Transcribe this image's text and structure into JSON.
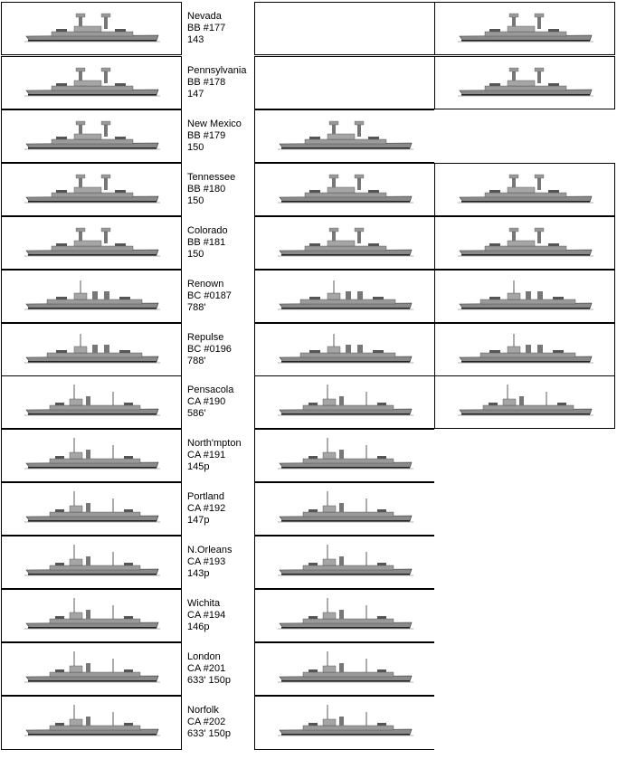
{
  "ships": [
    {
      "name": "Nevada",
      "hull": "BB #177",
      "note": "143",
      "views": [
        true,
        false,
        true
      ]
    },
    {
      "name": "Pennsylvania",
      "hull": "BB #178",
      "note": "147",
      "views": [
        true,
        false,
        true
      ]
    },
    {
      "name": "New Mexico",
      "hull": "BB #179",
      "note": "150",
      "views": [
        true,
        true,
        false
      ]
    },
    {
      "name": "Tennessee",
      "hull": "BB #180",
      "note": "150",
      "views": [
        true,
        true,
        true
      ]
    },
    {
      "name": "Colorado",
      "hull": "BB #181",
      "note": "150",
      "views": [
        true,
        true,
        true
      ]
    },
    {
      "name": "Renown",
      "hull": "BC #0187",
      "note": "788'",
      "views": [
        true,
        true,
        true
      ]
    },
    {
      "name": "Repulse",
      "hull": "BC #0196",
      "note": "788'",
      "views": [
        true,
        true,
        true
      ]
    },
    {
      "name": "Pensacola",
      "hull": "CA #190",
      "note": "586'",
      "views": [
        true,
        true,
        true
      ]
    },
    {
      "name": "North'mpton",
      "hull": "CA #191",
      "note": "145p",
      "views": [
        true,
        true,
        false
      ]
    },
    {
      "name": "Portland",
      "hull": "CA #192",
      "note": "147p",
      "views": [
        true,
        true,
        false
      ]
    },
    {
      "name": "N.Orleans",
      "hull": "CA #193",
      "note": "143p",
      "views": [
        true,
        true,
        false
      ]
    },
    {
      "name": "Wichita",
      "hull": "CA #194",
      "note": "146p",
      "views": [
        true,
        true,
        false
      ]
    },
    {
      "name": "London",
      "hull": "CA #201",
      "note": "633' 150p",
      "views": [
        true,
        true,
        false
      ]
    },
    {
      "name": "Norfolk",
      "hull": "CA #202",
      "note": "633' 150p",
      "views": [
        true,
        true,
        false
      ]
    }
  ]
}
